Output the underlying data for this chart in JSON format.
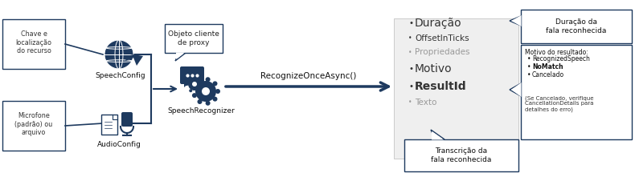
{
  "bg_color": "#ffffff",
  "dark_blue": "#1e3a5f",
  "light_gray_bg": "#efefef",
  "left_box1_text": "Chave e\nlocalização\ndo recurso",
  "left_box2_text": "Microfone\n(padrão) ou\narquivo",
  "speechconfig_label": "SpeechConfig",
  "audioconfig_label": "AudioConfig",
  "speechrecognizer_label": "SpeechRecognizer",
  "proxy_bubble_text": "Objeto cliente\nde proxy",
  "recognize_label": "RecognizeOnceAsync()",
  "result_items": [
    "Duração",
    "OffsetInTicks",
    "Propriedades",
    "Motivo",
    "ResultId",
    "Texto"
  ],
  "result_bold": [
    false,
    false,
    false,
    false,
    true,
    false
  ],
  "result_gray": [
    false,
    false,
    true,
    false,
    false,
    true
  ],
  "result_fontsizes": [
    10,
    7.5,
    7.5,
    10,
    10,
    7.5
  ],
  "top_right_box_text": "Duração da\nfala reconhecida",
  "bottom_right_box_text": "Transcrição da\nfala reconhecida",
  "motivo_box_title": "Motivo do resultado:",
  "motivo_items": [
    "RecognizedSpeech",
    "NoMatch",
    "Cancelado"
  ],
  "motivo_bold": [
    false,
    true,
    false
  ],
  "motivo_note": "(Se Cancelado, verifique\nCancellationDetails para\ndetalhes do erro)"
}
